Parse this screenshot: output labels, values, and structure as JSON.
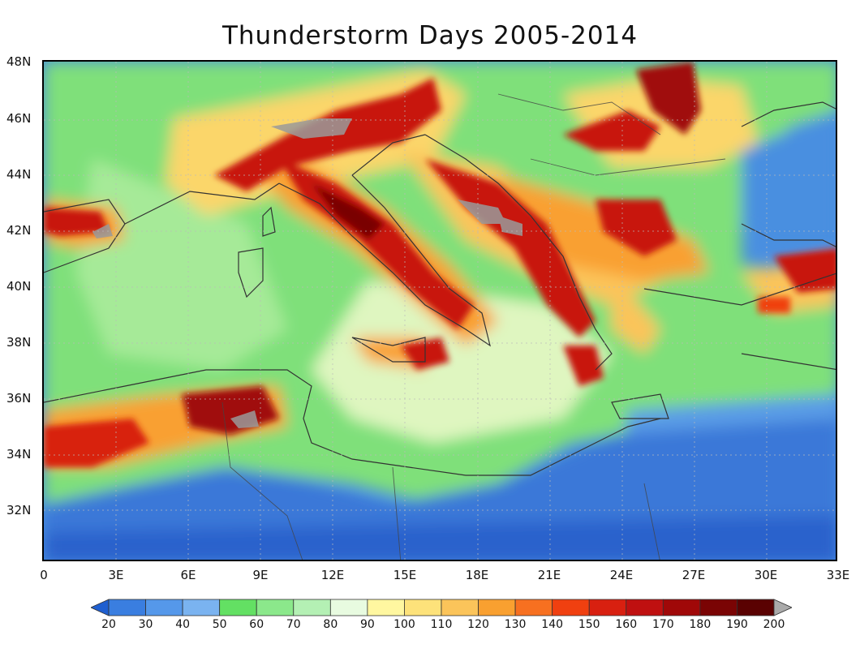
{
  "map": {
    "title": "Thunderstorm Days 2005-2014",
    "lat_labels": [
      "48N",
      "46N",
      "44N",
      "42N",
      "40N",
      "38N",
      "36N",
      "34N",
      "32N"
    ],
    "lon_labels": [
      "0",
      "3E",
      "6E",
      "9E",
      "12E",
      "15E",
      "18E",
      "21E",
      "24E",
      "27E",
      "30E",
      "33E"
    ],
    "colorbar": {
      "ticks": [
        "20",
        "30",
        "40",
        "50",
        "60",
        "70",
        "80",
        "90",
        "100",
        "110",
        "120",
        "130",
        "140",
        "150",
        "160",
        "170",
        "180",
        "190",
        "200"
      ],
      "colors": [
        "#1f5fd0",
        "#3a7ee0",
        "#5598ea",
        "#7ab3f0",
        "#63e063",
        "#8be88b",
        "#b4f0b4",
        "#e8fbe0",
        "#fff7a0",
        "#fde27a",
        "#fbc45a",
        "#f9a030",
        "#f77020",
        "#f04010",
        "#d82010",
        "#bf1010",
        "#a00808",
        "#7a0404",
        "#5a0202"
      ]
    }
  }
}
